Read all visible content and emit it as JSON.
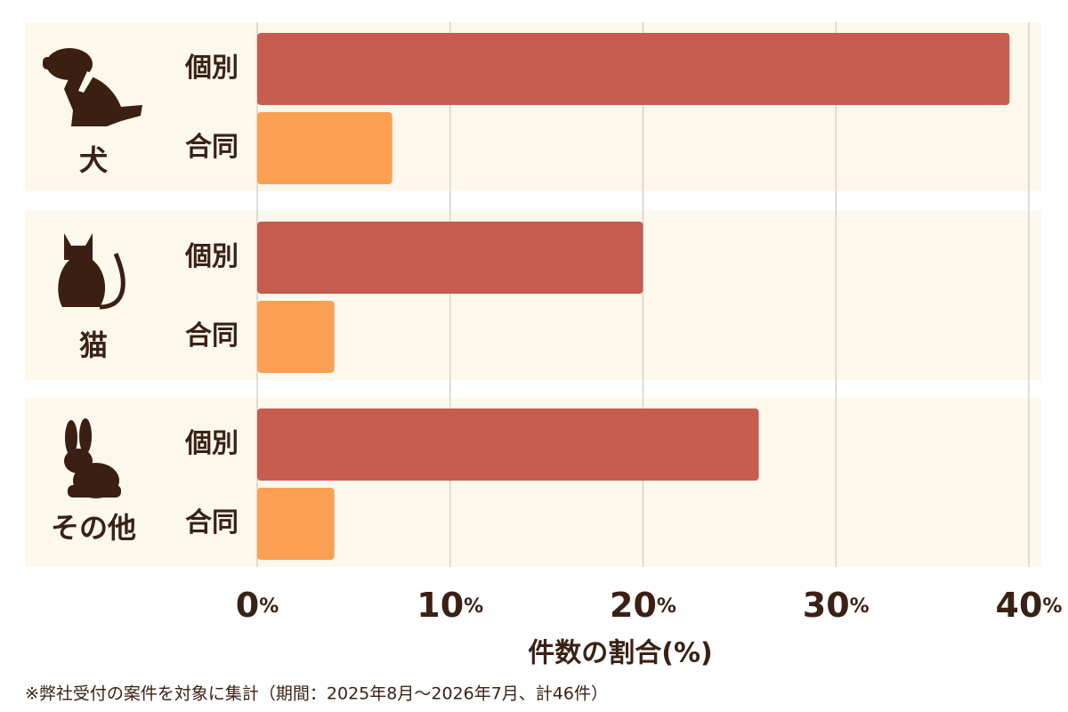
{
  "chart_data": {
    "type": "bar",
    "orientation": "horizontal",
    "categories": [
      "犬",
      "猫",
      "その他"
    ],
    "series": [
      {
        "name": "個別",
        "color": "#c75c4f",
        "values": [
          39,
          20,
          26
        ]
      },
      {
        "name": "合同",
        "color": "#fba052",
        "values": [
          7,
          4,
          4
        ]
      }
    ],
    "xlim": [
      0,
      40
    ],
    "xticks": [
      {
        "value": 0,
        "label": "0%"
      },
      {
        "value": 10,
        "label": "10%"
      },
      {
        "value": 20,
        "label": "20%"
      },
      {
        "value": 30,
        "label": "30%"
      },
      {
        "value": 40,
        "label": "40%"
      }
    ],
    "xlabel": "件数の割合(%)",
    "grid": true,
    "note": "※弊社受付の案件を対象に集計（期間：2025年8月〜2026年7月、計46件）"
  }
}
